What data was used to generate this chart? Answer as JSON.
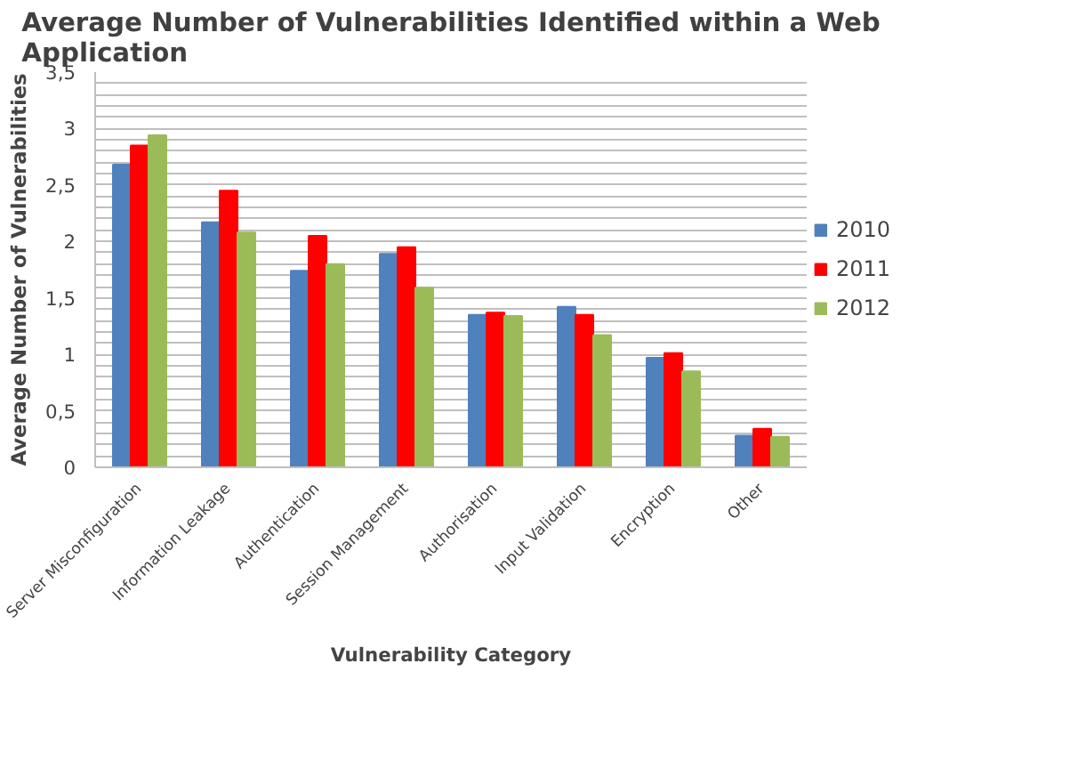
{
  "chart_data": {
    "type": "bar",
    "title": "Average Number of Vulnerabilities Identified within a Web Application",
    "xlabel": "Vulnerability Category",
    "ylabel": "Average Number of Vulnerabilities",
    "categories": [
      "Server Misconfiguration",
      "Information Leakage",
      "Authentication",
      "Session Management",
      "Authorisation",
      "Input Validation",
      "Encryption",
      "Other"
    ],
    "series": [
      {
        "name": "2010",
        "color": "#4f81bd",
        "values": [
          2.68,
          2.17,
          1.74,
          1.89,
          1.35,
          1.42,
          0.97,
          0.28
        ]
      },
      {
        "name": "2011",
        "color": "#ff0000",
        "values": [
          2.85,
          2.45,
          2.05,
          1.95,
          1.37,
          1.35,
          1.01,
          0.34
        ]
      },
      {
        "name": "2012",
        "color": "#9bbb59",
        "values": [
          2.94,
          2.08,
          1.8,
          1.59,
          1.34,
          1.17,
          0.85,
          0.27
        ]
      }
    ],
    "ylim": [
      0,
      3.5
    ],
    "yticks": [
      0,
      {
        "value": 0.1,
        "label": null
      },
      {
        "value": 0.2,
        "label": null
      },
      {
        "value": 0.3,
        "label": null
      },
      {
        "value": 0.4,
        "label": null
      },
      {
        "value": 0.5,
        "label": "0,5"
      },
      {
        "value": 0.6,
        "label": null
      },
      {
        "value": 0.7,
        "label": null
      },
      {
        "value": 0.8,
        "label": null
      },
      {
        "value": 0.9,
        "label": null
      },
      1,
      {
        "value": 1.1,
        "label": null
      },
      {
        "value": 1.2,
        "label": null
      },
      {
        "value": 1.3,
        "label": null
      },
      {
        "value": 1.4,
        "label": null
      },
      {
        "value": 1.5,
        "label": "1,5"
      },
      {
        "value": 1.6,
        "label": null
      },
      {
        "value": 1.7,
        "label": null
      },
      {
        "value": 1.8,
        "label": null
      },
      {
        "value": 1.9,
        "label": null
      },
      2,
      {
        "value": 2.1,
        "label": null
      },
      {
        "value": 2.2,
        "label": null
      },
      {
        "value": 2.3,
        "label": null
      },
      {
        "value": 2.4,
        "label": null
      },
      {
        "value": 2.5,
        "label": "2,5"
      },
      {
        "value": 2.6,
        "label": null
      },
      {
        "value": 2.7,
        "label": null
      },
      {
        "value": 2.8,
        "label": null
      },
      {
        "value": 2.9,
        "label": null
      },
      3,
      {
        "value": 3.1,
        "label": null
      },
      {
        "value": 3.2,
        "label": null
      },
      {
        "value": 3.3,
        "label": null
      },
      {
        "value": 3.4,
        "label": null
      },
      {
        "value": 3.5,
        "label": "3,5"
      }
    ],
    "grid": "y",
    "legend": "right"
  }
}
